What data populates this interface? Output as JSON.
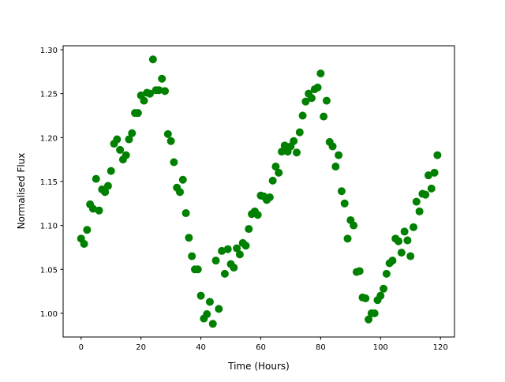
{
  "chart_data": {
    "type": "scatter",
    "title": "",
    "xlabel": "Time (Hours)",
    "ylabel": "Normalised Flux",
    "xlim": [
      -6.0,
      124.7
    ],
    "ylim": [
      0.973,
      1.3045
    ],
    "xticks": [
      0,
      20,
      40,
      60,
      80,
      100,
      120
    ],
    "xtick_labels": [
      "0",
      "20",
      "40",
      "60",
      "80",
      "100",
      "120"
    ],
    "yticks": [
      1.0,
      1.05,
      1.1,
      1.15,
      1.2,
      1.25,
      1.3
    ],
    "ytick_labels": [
      "1.00",
      "1.05",
      "1.10",
      "1.15",
      "1.20",
      "1.25",
      "1.30"
    ],
    "grid": false,
    "marker_color": "#008000",
    "x": [
      0,
      1,
      2,
      3,
      4,
      5,
      6,
      7,
      8,
      9,
      10,
      11,
      12,
      13,
      14,
      15,
      16,
      17,
      18,
      19,
      20,
      21,
      22,
      23,
      24,
      25,
      26,
      27,
      28,
      29,
      30,
      31,
      32,
      33,
      34,
      35,
      36,
      37,
      38,
      39,
      40,
      41,
      42,
      43,
      44,
      45,
      46,
      47,
      48,
      49,
      50,
      51,
      52,
      53,
      54,
      55,
      56,
      57,
      58,
      59,
      60,
      61,
      62,
      63,
      64,
      65,
      66,
      67,
      68,
      69,
      70,
      71,
      72,
      73,
      74,
      75,
      76,
      77,
      78,
      79,
      80,
      81,
      82,
      83,
      84,
      85,
      86,
      87,
      88,
      89,
      90,
      91,
      92,
      93,
      94,
      95,
      96,
      97,
      98,
      99,
      100,
      101,
      102,
      103,
      104,
      105,
      106,
      107,
      108,
      109,
      110,
      111,
      112,
      113,
      114,
      115,
      116,
      117,
      118,
      119
    ],
    "y": [
      1.085,
      1.079,
      1.095,
      1.124,
      1.119,
      1.153,
      1.117,
      1.141,
      1.138,
      1.145,
      1.162,
      1.193,
      1.198,
      1.186,
      1.175,
      1.18,
      1.198,
      1.205,
      1.228,
      1.228,
      1.248,
      1.242,
      1.251,
      1.25,
      1.289,
      1.254,
      1.254,
      1.267,
      1.253,
      1.204,
      1.196,
      1.172,
      1.143,
      1.138,
      1.152,
      1.114,
      1.086,
      1.065,
      1.05,
      1.05,
      1.02,
      0.994,
      0.999,
      1.013,
      0.988,
      1.06,
      1.005,
      1.071,
      1.045,
      1.073,
      1.056,
      1.052,
      1.074,
      1.067,
      1.08,
      1.077,
      1.096,
      1.113,
      1.116,
      1.112,
      1.134,
      1.133,
      1.129,
      1.132,
      1.151,
      1.167,
      1.16,
      1.184,
      1.191,
      1.184,
      1.19,
      1.196,
      1.183,
      1.206,
      1.225,
      1.241,
      1.25,
      1.245,
      1.255,
      1.257,
      1.273,
      1.224,
      1.242,
      1.195,
      1.19,
      1.167,
      1.18,
      1.139,
      1.125,
      1.085,
      1.106,
      1.1,
      1.047,
      1.048,
      1.018,
      1.017,
      0.993,
      1.0,
      1.0,
      1.015,
      1.02,
      1.028,
      1.045,
      1.057,
      1.06,
      1.085,
      1.082,
      1.069,
      1.093,
      1.083,
      1.065,
      1.098,
      1.127,
      1.116,
      1.136,
      1.135,
      1.157,
      1.142,
      1.16,
      1.18
    ]
  }
}
